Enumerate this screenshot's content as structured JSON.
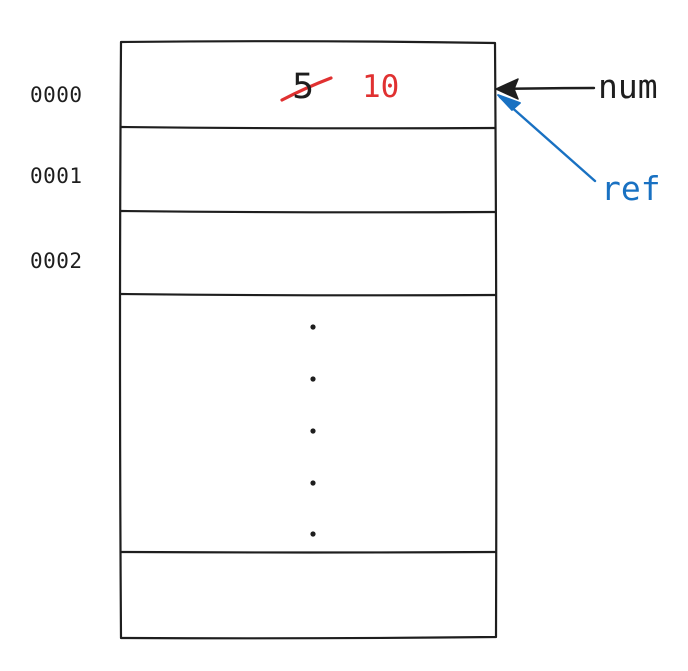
{
  "memory": {
    "addresses": [
      "0000",
      "0001",
      "0002"
    ],
    "cell0": {
      "old_value": "5",
      "new_value": "10"
    }
  },
  "pointers": [
    {
      "label": "num",
      "color": "#1e1e1e"
    },
    {
      "label": "ref",
      "color": "#1971c2"
    }
  ],
  "colors": {
    "stroke": "#1e1e1e",
    "new_value": "#e03131",
    "strike": "#e03131",
    "ref": "#1971c2"
  }
}
